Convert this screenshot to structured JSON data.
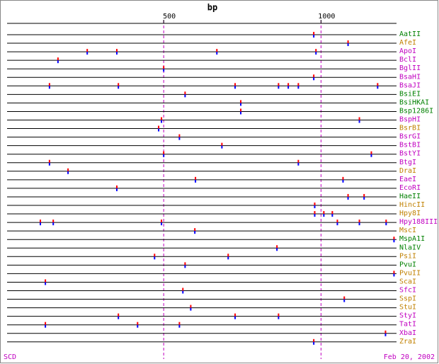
{
  "chart_data": {
    "type": "restriction_map",
    "title": "bp",
    "xlim": [
      0,
      1240
    ],
    "xticks": [
      500,
      1000
    ],
    "footer_left": "SCD",
    "footer_right": "Feb 20, 2002",
    "series": [
      {
        "name": "AatII",
        "color": "#008000",
        "values": [
          977
        ]
      },
      {
        "name": "AfeI",
        "color": "#c08000",
        "values": [
          1086
        ]
      },
      {
        "name": "ApoI",
        "color": "#c000c0",
        "values": [
          257,
          351,
          669,
          984
        ]
      },
      {
        "name": "BclI",
        "color": "#c000c0",
        "values": [
          164
        ]
      },
      {
        "name": "BglII",
        "color": "#c000c0",
        "values": [
          500
        ]
      },
      {
        "name": "BsaHI",
        "color": "#c000c0",
        "values": [
          977
        ]
      },
      {
        "name": "BsaJI",
        "color": "#c000c0",
        "values": [
          137,
          356,
          727,
          865,
          896,
          928,
          1180
        ]
      },
      {
        "name": "BsiEI",
        "color": "#008000",
        "values": [
          568
        ]
      },
      {
        "name": "BsiHKAI",
        "color": "#008000",
        "values": [
          745
        ]
      },
      {
        "name": "Bsp1286I",
        "color": "#008000",
        "values": [
          745
        ]
      },
      {
        "name": "BspHI",
        "color": "#c000c0",
        "values": [
          493,
          1122
        ]
      },
      {
        "name": "BsrBI",
        "color": "#c08000",
        "values": [
          484
        ]
      },
      {
        "name": "BsrGI",
        "color": "#c000c0",
        "values": [
          550
        ]
      },
      {
        "name": "BstBI",
        "color": "#c000c0",
        "values": [
          685
        ]
      },
      {
        "name": "BstYI",
        "color": "#c000c0",
        "values": [
          500,
          1160
        ]
      },
      {
        "name": "BtgI",
        "color": "#c000c0",
        "values": [
          137,
          928
        ]
      },
      {
        "name": "DraI",
        "color": "#c08000",
        "values": [
          196
        ]
      },
      {
        "name": "EaeI",
        "color": "#c000c0",
        "values": [
          601,
          1070
        ]
      },
      {
        "name": "EcoRI",
        "color": "#c000c0",
        "values": [
          351
        ]
      },
      {
        "name": "HaeII",
        "color": "#008000",
        "values": [
          1086,
          1137
        ]
      },
      {
        "name": "HincII",
        "color": "#c08000",
        "values": [
          980
        ]
      },
      {
        "name": "Hpy8I",
        "color": "#c08000",
        "values": [
          980,
          1009,
          1036
        ]
      },
      {
        "name": "Hpy188III",
        "color": "#c000c0",
        "values": [
          108,
          149,
          493,
          1052,
          1122,
          1207
        ]
      },
      {
        "name": "MscI",
        "color": "#c08000",
        "values": [
          599
        ]
      },
      {
        "name": "MspA1I",
        "color": "#008000",
        "values": [
          1232
        ]
      },
      {
        "name": "NlaIV",
        "color": "#008000",
        "values": [
          860
        ]
      },
      {
        "name": "PsiI",
        "color": "#c08000",
        "values": [
          471,
          705
        ]
      },
      {
        "name": "PvuI",
        "color": "#008000",
        "values": [
          568
        ]
      },
      {
        "name": "PvuII",
        "color": "#c08000",
        "values": [
          1232
        ]
      },
      {
        "name": "ScaI",
        "color": "#c08000",
        "values": [
          124
        ]
      },
      {
        "name": "SfcI",
        "color": "#c000c0",
        "values": [
          561
        ]
      },
      {
        "name": "SspI",
        "color": "#c08000",
        "values": [
          1074
        ]
      },
      {
        "name": "StuI",
        "color": "#c08000",
        "values": [
          586
        ]
      },
      {
        "name": "StyI",
        "color": "#c000c0",
        "values": [
          356,
          727,
          865
        ]
      },
      {
        "name": "TatI",
        "color": "#c000c0",
        "values": [
          124,
          417,
          550
        ]
      },
      {
        "name": "XbaI",
        "color": "#c000c0",
        "values": [
          1205
        ]
      },
      {
        "name": "ZraI",
        "color": "#c08000",
        "values": [
          977
        ]
      }
    ]
  }
}
